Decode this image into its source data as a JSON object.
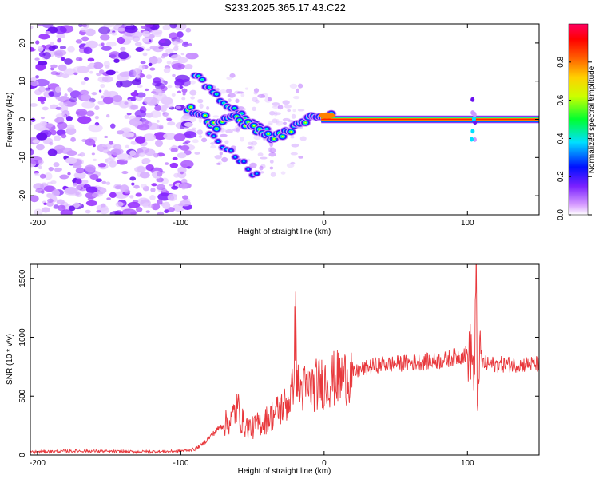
{
  "title": "S233.2025.365.17.43.C22",
  "colors": {
    "snr_line": "#e8383c",
    "axis": "#000000",
    "background": "#ffffff"
  },
  "chart_data": [
    {
      "type": "heatmap",
      "name": "spectrogram",
      "xlabel": "Height of straight line (km)",
      "ylabel": "Frequency (Hz)",
      "xlim": [
        -205,
        150
      ],
      "ylim": [
        -25,
        25
      ],
      "xticks": [
        -200,
        -100,
        0,
        100
      ],
      "yticks": [
        20,
        10,
        0,
        -10,
        -20
      ],
      "colorbar": {
        "label": "Normalized spectral amplitude",
        "range": [
          0,
          1
        ],
        "ticks": [
          "0.0",
          "0.2",
          "0.4",
          "0.6",
          "0.8"
        ],
        "tick_values": [
          0.0,
          0.2,
          0.4,
          0.6,
          0.8
        ],
        "colormap": [
          "#ffffff",
          "#cc80ff",
          "#6020e0",
          "#0000ff",
          "#00e0ff",
          "#00ff40",
          "#ffff00",
          "#ff8000",
          "#ff0000",
          "#ff0060"
        ]
      },
      "ridge": {
        "description": "dominant frequency track of signal",
        "points": [
          [
            -95,
            3
          ],
          [
            -85,
            1
          ],
          [
            -75,
            -2
          ],
          [
            -65,
            1
          ],
          [
            -55,
            -1
          ],
          [
            -45,
            -3
          ],
          [
            -35,
            -5
          ],
          [
            -25,
            -3
          ],
          [
            -15,
            -1
          ],
          [
            -10,
            1
          ],
          [
            -5,
            1
          ],
          [
            0,
            1
          ],
          [
            5,
            1
          ],
          [
            10,
            0.5
          ],
          [
            15,
            0
          ],
          [
            150,
            0
          ]
        ],
        "secondary": [
          [
            -90,
            12
          ],
          [
            -80,
            8
          ],
          [
            -70,
            4
          ],
          [
            -60,
            2
          ],
          [
            -50,
            -1
          ],
          [
            -40,
            -3
          ]
        ],
        "tertiary": [
          [
            -80,
            -4
          ],
          [
            -70,
            -7
          ],
          [
            -60,
            -10
          ],
          [
            -50,
            -14
          ],
          [
            -45,
            -15
          ]
        ],
        "noise_region_x": [
          -205,
          -92
        ]
      }
    },
    {
      "type": "line",
      "name": "snr",
      "xlabel": "Height of straight line (km)",
      "ylabel": "SNR (10 * v/v)",
      "xlim": [
        -205,
        150
      ],
      "ylim": [
        0,
        1620
      ],
      "xticks": [
        -200,
        -100,
        0,
        100
      ],
      "yticks": [
        0,
        500,
        1000,
        1500
      ],
      "series": [
        {
          "name": "SNR",
          "x": [
            -205,
            -190,
            -170,
            -150,
            -130,
            -110,
            -100,
            -90,
            -85,
            -80,
            -75,
            -70,
            -65,
            -62,
            -60,
            -58,
            -55,
            -50,
            -45,
            -40,
            -35,
            -30,
            -25,
            -22,
            -20,
            -19,
            -18,
            -15,
            -10,
            -5,
            0,
            5,
            10,
            15,
            20,
            25,
            30,
            35,
            40,
            45,
            50,
            55,
            60,
            65,
            70,
            75,
            80,
            85,
            90,
            95,
            100,
            103,
            105,
            106,
            107,
            108,
            110,
            115,
            120,
            130,
            140,
            150
          ],
          "y": [
            25,
            30,
            35,
            30,
            28,
            30,
            35,
            50,
            90,
            150,
            210,
            260,
            300,
            380,
            400,
            300,
            250,
            230,
            270,
            300,
            350,
            400,
            450,
            550,
            1120,
            700,
            560,
            560,
            570,
            600,
            620,
            640,
            650,
            660,
            690,
            720,
            740,
            760,
            770,
            770,
            775,
            780,
            780,
            790,
            790,
            800,
            800,
            810,
            830,
            840,
            860,
            880,
            600,
            1600,
            300,
            860,
            780,
            770,
            770,
            770,
            770,
            770
          ]
        }
      ]
    }
  ]
}
